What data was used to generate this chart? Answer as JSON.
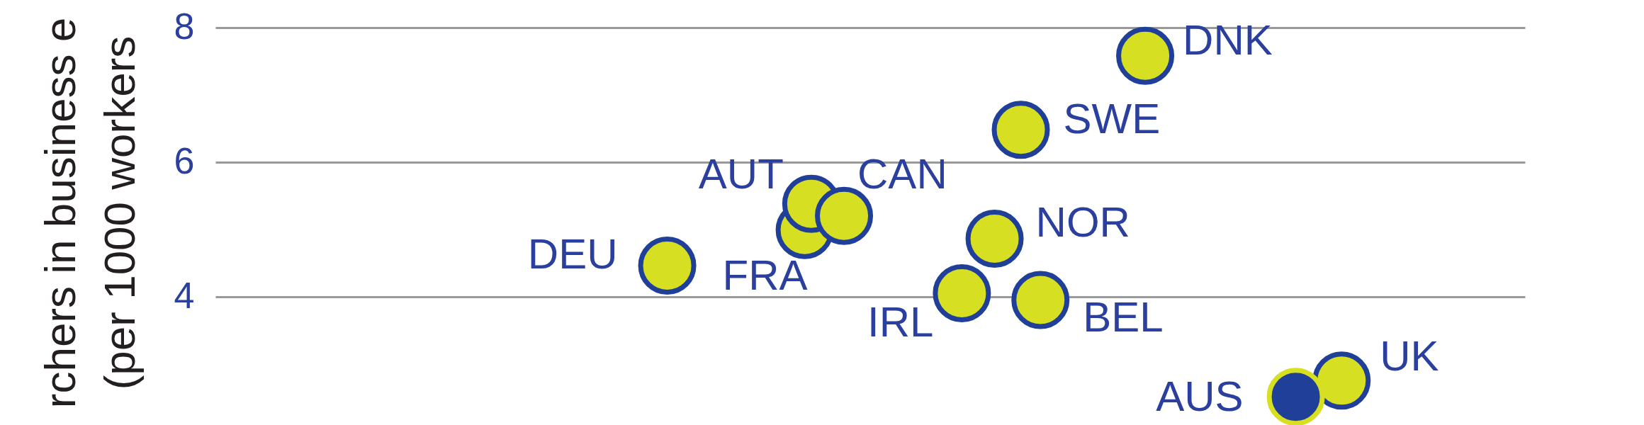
{
  "chart_data": {
    "type": "scatter",
    "ylabel": "rchers in business e\n(per 1000 workers",
    "ylim": [
      2.09,
      8.41
    ],
    "yticks": [
      4,
      6,
      8
    ],
    "grid": "y",
    "tick_labels": "y",
    "marker": "circle",
    "categories": [
      null,
      null,
      null,
      null,
      null,
      null,
      null,
      null,
      null,
      null,
      null,
      null,
      null,
      null,
      null,
      null,
      null,
      null,
      null,
      null,
      null,
      null,
      null,
      null,
      null,
      null,
      null,
      null,
      null,
      null,
      null,
      null,
      null,
      null,
      null,
      null,
      null,
      null,
      null,
      null,
      null,
      null,
      null,
      null,
      null,
      null,
      null,
      null,
      null,
      null,
      null,
      null,
      null,
      null,
      null,
      null,
      null,
      null,
      null,
      null,
      null,
      null,
      null,
      null,
      null,
      null,
      null,
      null,
      null,
      null,
      null,
      null,
      null,
      null,
      null,
      null,
      null,
      null,
      null,
      null,
      null,
      null,
      null,
      null,
      null,
      null,
      null,
      null,
      null,
      null,
      null,
      null,
      null,
      null,
      null,
      null,
      null,
      null,
      null,
      null,
      null,
      null,
      null,
      null,
      null,
      null,
      null,
      null,
      null,
      null,
      null,
      null,
      null,
      null,
      null,
      null,
      null,
      null,
      null,
      null,
      null,
      null,
      null,
      null,
      null,
      null,
      null,
      null,
      null,
      null,
      null,
      null,
      null,
      null,
      null,
      null,
      null,
      null,
      null,
      null,
      null,
      null,
      null,
      null,
      null,
      null,
      null,
      null,
      null,
      null,
      null,
      null,
      null,
      null,
      null,
      null,
      null,
      null,
      null,
      null,
      null,
      null,
      null,
      null,
      null,
      null,
      null,
      null,
      null,
      null,
      null,
      null,
      null,
      null,
      null,
      null,
      null,
      null,
      null,
      null,
      null,
      null,
      null,
      null,
      null,
      null,
      null,
      null,
      null,
      null,
      null,
      null,
      null,
      null,
      null,
      null,
      null,
      null,
      null,
      null,
      null
    ],
    "series": [
      {
        "color": "#d7df23",
        "values": [
          null,
          null,
          null,
          null,
          null,
          null,
          null,
          null,
          null,
          null,
          null,
          null,
          null,
          null,
          null,
          null,
          null,
          null,
          null,
          null,
          null,
          null,
          null,
          null,
          null,
          null,
          null,
          null,
          null,
          null,
          null,
          null,
          null,
          null,
          null,
          null,
          null,
          null,
          null,
          null,
          null,
          null,
          null,
          null,
          null,
          null,
          null,
          null,
          null,
          null,
          null,
          null,
          null,
          null,
          null,
          null,
          null,
          null,
          null,
          null,
          null,
          null,
          null,
          null,
          null,
          null,
          null,
          null,
          null,
          4.46,
          null,
          null,
          null,
          null,
          null,
          null,
          null,
          null,
          null,
          null,
          null,
          null,
          null,
          null,
          null,
          null,
          null,
          null,
          null,
          null,
          4.99,
          5.38,
          null,
          null,
          null,
          null,
          5.2,
          null,
          null,
          null,
          null,
          null,
          null,
          null,
          null,
          null,
          null,
          null,
          null,
          null,
          null,
          null,
          null,
          null,
          4.05,
          null,
          null,
          null,
          null,
          4.86,
          null,
          null,
          null,
          6.48,
          null,
          null,
          3.95,
          null,
          null,
          null,
          null,
          null,
          null,
          null,
          null,
          null,
          null,
          null,
          null,
          null,
          null,
          null,
          7.58,
          null,
          null,
          null,
          null,
          null,
          null,
          null,
          null,
          null,
          null,
          null,
          null,
          null,
          null,
          null,
          null,
          null,
          null,
          null,
          null,
          null,
          null,
          null,
          null,
          null,
          null,
          null,
          null,
          null,
          2.75,
          null,
          null,
          null,
          null,
          null,
          null,
          null,
          null,
          null,
          null,
          null,
          null,
          null,
          null,
          null,
          null,
          null,
          null,
          null,
          null,
          null,
          null,
          null,
          null,
          null,
          null,
          null,
          null
        ],
        "value_labels": [
          null,
          null,
          null,
          null,
          null,
          null,
          null,
          null,
          null,
          null,
          null,
          null,
          null,
          null,
          null,
          null,
          null,
          null,
          null,
          null,
          null,
          null,
          null,
          null,
          null,
          null,
          null,
          null,
          null,
          null,
          null,
          null,
          null,
          null,
          null,
          null,
          null,
          null,
          null,
          null,
          null,
          null,
          null,
          null,
          null,
          null,
          null,
          null,
          null,
          null,
          null,
          null,
          null,
          null,
          null,
          null,
          null,
          null,
          null,
          null,
          null,
          null,
          null,
          null,
          null,
          null,
          null,
          null,
          null,
          "DEU",
          null,
          null,
          null,
          null,
          null,
          null,
          null,
          null,
          null,
          null,
          null,
          null,
          null,
          null,
          null,
          null,
          null,
          null,
          null,
          null,
          "FRA",
          "AUT",
          null,
          null,
          null,
          null,
          "CAN",
          null,
          null,
          null,
          null,
          null,
          null,
          null,
          null,
          null,
          null,
          null,
          null,
          null,
          null,
          null,
          null,
          null,
          "IRL",
          null,
          null,
          null,
          null,
          "NOR",
          null,
          null,
          null,
          "SWE",
          null,
          null,
          "BEL",
          null,
          null,
          null,
          null,
          null,
          null,
          null,
          null,
          null,
          null,
          null,
          null,
          null,
          null,
          null,
          "DNK",
          null,
          null,
          null,
          null,
          null,
          null,
          null,
          null,
          null,
          null,
          null,
          null,
          null,
          null,
          null,
          null,
          null,
          null,
          null,
          null,
          null,
          null,
          null,
          null,
          null,
          null,
          null,
          null,
          null,
          "UK",
          null,
          null,
          null,
          null,
          null,
          null,
          null,
          null,
          null,
          null,
          null,
          null,
          null,
          null,
          null,
          null,
          null,
          null,
          null,
          null,
          null,
          null,
          null,
          null,
          null,
          null,
          null,
          null
        ]
      },
      {
        "color": "#1f3f99",
        "values": [
          null,
          null,
          null,
          null,
          null,
          null,
          null,
          null,
          null,
          null,
          null,
          null,
          null,
          null,
          null,
          null,
          null,
          null,
          null,
          null,
          null,
          null,
          null,
          null,
          null,
          null,
          null,
          null,
          null,
          null,
          null,
          null,
          null,
          null,
          null,
          null,
          null,
          null,
          null,
          null,
          null,
          null,
          null,
          null,
          null,
          null,
          null,
          null,
          null,
          null,
          null,
          null,
          null,
          null,
          null,
          null,
          null,
          null,
          null,
          null,
          null,
          null,
          null,
          null,
          null,
          null,
          null,
          null,
          null,
          null,
          null,
          null,
          null,
          null,
          null,
          null,
          null,
          null,
          null,
          null,
          null,
          null,
          null,
          null,
          null,
          null,
          null,
          null,
          null,
          null,
          null,
          null,
          null,
          null,
          null,
          null,
          null,
          null,
          null,
          null,
          null,
          null,
          null,
          null,
          null,
          null,
          null,
          null,
          null,
          null,
          null,
          null,
          null,
          null,
          null,
          null,
          null,
          null,
          null,
          null,
          null,
          null,
          null,
          null,
          null,
          null,
          null,
          null,
          null,
          null,
          null,
          null,
          null,
          null,
          null,
          null,
          null,
          null,
          null,
          null,
          null,
          null,
          null,
          null,
          null,
          null,
          null,
          null,
          null,
          null,
          null,
          null,
          null,
          null,
          null,
          null,
          null,
          null,
          null,
          null,
          null,
          null,
          null,
          null,
          null,
          2.51,
          null,
          null,
          null,
          null,
          null,
          null,
          null,
          null,
          null,
          null,
          null,
          null,
          null,
          null,
          null,
          null,
          null,
          null,
          null,
          null,
          null,
          null,
          null,
          null,
          null,
          null,
          null,
          null,
          null,
          null,
          null,
          null,
          null,
          null,
          null
        ],
        "value_labels": [
          null,
          null,
          null,
          null,
          null,
          null,
          null,
          null,
          null,
          null,
          null,
          null,
          null,
          null,
          null,
          null,
          null,
          null,
          null,
          null,
          null,
          null,
          null,
          null,
          null,
          null,
          null,
          null,
          null,
          null,
          null,
          null,
          null,
          null,
          null,
          null,
          null,
          null,
          null,
          null,
          null,
          null,
          null,
          null,
          null,
          null,
          null,
          null,
          null,
          null,
          null,
          null,
          null,
          null,
          null,
          null,
          null,
          null,
          null,
          null,
          null,
          null,
          null,
          null,
          null,
          null,
          null,
          null,
          null,
          null,
          null,
          null,
          null,
          null,
          null,
          null,
          null,
          null,
          null,
          null,
          null,
          null,
          null,
          null,
          null,
          null,
          null,
          null,
          null,
          null,
          null,
          null,
          null,
          null,
          null,
          null,
          null,
          null,
          null,
          null,
          null,
          null,
          null,
          null,
          null,
          null,
          null,
          null,
          null,
          null,
          null,
          null,
          null,
          null,
          null,
          null,
          null,
          null,
          null,
          null,
          null,
          null,
          null,
          null,
          null,
          null,
          null,
          null,
          null,
          null,
          null,
          null,
          null,
          null,
          null,
          null,
          null,
          null,
          null,
          null,
          null,
          null,
          null,
          null,
          null,
          null,
          null,
          null,
          null,
          null,
          null,
          null,
          null,
          null,
          null,
          null,
          null,
          null,
          null,
          null,
          null,
          null,
          null,
          null,
          null,
          "AUS",
          null,
          null,
          null,
          null,
          null,
          null,
          null,
          null,
          null,
          null,
          null,
          null,
          null,
          null,
          null,
          null,
          null,
          null,
          null,
          null,
          null,
          null,
          null,
          null,
          null,
          null,
          null,
          null,
          null,
          null,
          null,
          null,
          null,
          null,
          null
        ]
      }
    ]
  }
}
